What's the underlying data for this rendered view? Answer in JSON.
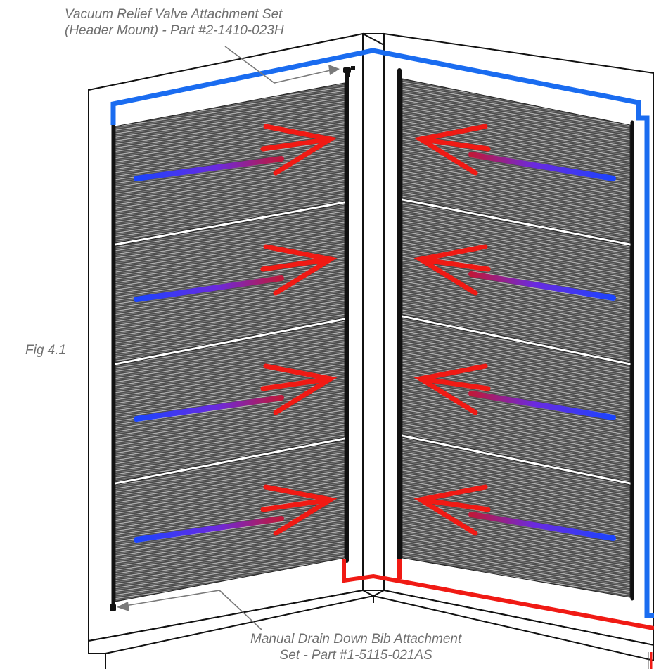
{
  "figure_label": "Fig 4.1",
  "callouts": {
    "vacuum_valve": {
      "line1": "Vacuum Relief Valve Attachment Set",
      "line2": "(Header Mount) - Part #2-1410-023H"
    },
    "drain_bib": {
      "line1": "Manual Drain Down Bib Attachment",
      "line2": "Set - Part #1-5115-021AS"
    }
  },
  "colors": {
    "supply_pipe": "#1a6cf0",
    "return_pipe": "#f01a14",
    "flow_arrow": "#f01a14",
    "cold_gradient_start": "#1a44ff",
    "hot_gradient_end": "#c0183a",
    "collector_fill": "#4a4a4a",
    "frame_stroke": "#111111",
    "callout_text": "#6f6f6f"
  },
  "panels": {
    "left_wall_count": 4,
    "right_wall_count": 4
  }
}
